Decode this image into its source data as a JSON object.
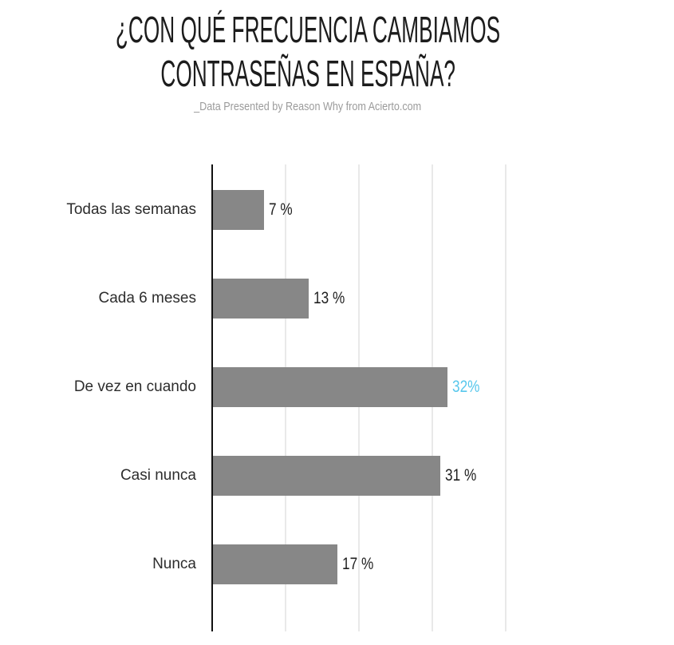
{
  "header": {
    "title_lines": [
      "¿CON QUÉ FRECUENCIA CAMBIAMOS",
      "CONTRASEÑAS EN ESPAÑA?"
    ],
    "subtitle": "_Data Presented by Reason Why from Acierto.com"
  },
  "chart_data": {
    "type": "bar",
    "orientation": "horizontal",
    "title": "¿CON QUÉ FRECUENCIA CAMBIAMOS CONTRASEÑAS EN ESPAÑA?",
    "subtitle": "_Data Presented by Reason Why from Acierto.com",
    "categories": [
      "Todas las semanas",
      "Cada 6 meses",
      "De vez en cuando",
      "Casi nunca",
      "Nunca"
    ],
    "values": [
      7,
      13,
      32,
      31,
      17
    ],
    "value_labels": [
      "7 %",
      "13 %",
      "32%",
      "31 %",
      "17 %"
    ],
    "highlight_index": 2,
    "xlim": [
      0,
      40
    ],
    "gridline_step": 10,
    "grid": "on",
    "legend": "none",
    "colors": {
      "bar": "#878787",
      "highlight_value": "#57c7ec",
      "value_label": "#1f1f1f",
      "category_label": "#2d2d2d",
      "axis": "#111111",
      "gridline": "#e9e9e9",
      "title": "#1c1c1c",
      "subtitle": "#9b9b9b",
      "background": "#ffffff"
    }
  }
}
